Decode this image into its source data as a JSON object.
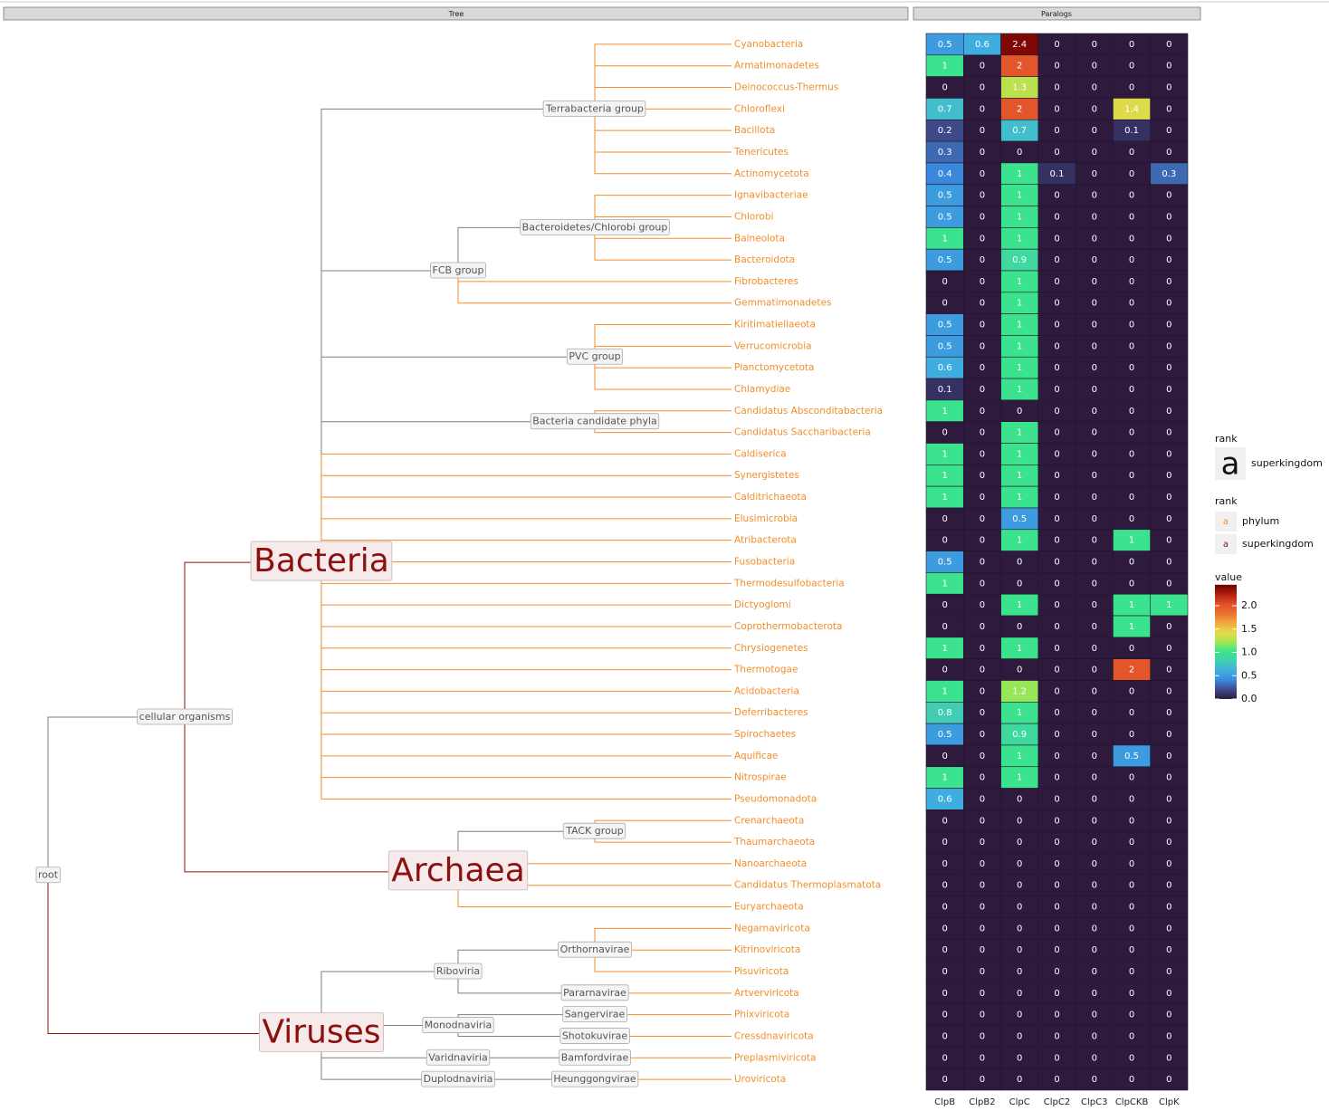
{
  "panels": {
    "tree": "Tree",
    "paralogs": "Paralogs"
  },
  "tree": {
    "edge_color": "#7f7f7f",
    "row_rank": "phylum",
    "nodes": [
      {
        "label": "root",
        "parent": null
      },
      {
        "label": "cellular organisms",
        "parent": 0
      },
      {
        "label": "Bacteria",
        "parent": 1,
        "rank": "superkingdom"
      },
      {
        "label": "Archaea",
        "parent": 1,
        "rank": "superkingdom"
      },
      {
        "label": "Viruses",
        "parent": 0,
        "rank": "superkingdom"
      },
      {
        "label": "Terrabacteria group",
        "parent": 2
      },
      {
        "label": "FCB group",
        "parent": 2
      },
      {
        "label": "Bacteroidetes/Chlorobi group",
        "parent": 6
      },
      {
        "label": "PVC group",
        "parent": 2
      },
      {
        "label": "Bacteria candidate phyla",
        "parent": 2
      },
      {
        "label": "TACK group",
        "parent": 3
      },
      {
        "label": "Riboviria",
        "parent": 4
      },
      {
        "label": "Orthornavirae",
        "parent": 11
      },
      {
        "label": "Pararnavirae",
        "parent": 11
      },
      {
        "label": "Monodnaviria",
        "parent": 4
      },
      {
        "label": "Sangervirae",
        "parent": 14
      },
      {
        "label": "Shotokuvirae",
        "parent": 14
      },
      {
        "label": "Varidnaviria",
        "parent": 4
      },
      {
        "label": "Bamfordvirae",
        "parent": 17
      },
      {
        "label": "Duplodnaviria",
        "parent": 4
      },
      {
        "label": "Heunggongvirae",
        "parent": 19
      }
    ],
    "row_parents": [
      5,
      5,
      5,
      5,
      5,
      5,
      5,
      7,
      7,
      7,
      7,
      6,
      6,
      8,
      8,
      8,
      8,
      9,
      9,
      2,
      2,
      2,
      2,
      2,
      2,
      2,
      2,
      2,
      2,
      2,
      2,
      2,
      2,
      2,
      2,
      2,
      10,
      10,
      3,
      3,
      3,
      12,
      12,
      12,
      13,
      15,
      16,
      18,
      20
    ]
  },
  "chart_data": {
    "type": "heatmap",
    "rows": [
      "Cyanobacteria",
      "Armatimonadetes",
      "Deinococcus-Thermus",
      "Chloroflexi",
      "Bacillota",
      "Tenericutes",
      "Actinomycetota",
      "Ignavibacteriae",
      "Chlorobi",
      "Balneolota",
      "Bacteroidota",
      "Fibrobacteres",
      "Gemmatimonadetes",
      "Kiritimatiellaeota",
      "Verrucomicrobia",
      "Planctomycetota",
      "Chlamydiae",
      "Candidatus Absconditabacteria",
      "Candidatus Saccharibacteria",
      "Caldiserica",
      "Synergistetes",
      "Calditrichaeota",
      "Elusimicrobia",
      "Atribacterota",
      "Fusobacteria",
      "Thermodesulfobacteria",
      "Dictyoglomi",
      "Coprothermobacterota",
      "Chrysiogenetes",
      "Thermotogae",
      "Acidobacteria",
      "Deferribacteres",
      "Spirochaetes",
      "Aquificae",
      "Nitrospirae",
      "Pseudomonadota",
      "Crenarchaeota",
      "Thaumarchaeota",
      "Nanoarchaeota",
      "Candidatus Thermoplasmatota",
      "Euryarchaeota",
      "Negarnaviricota",
      "Kitrinoviricota",
      "Pisuviricota",
      "Artverviricota",
      "Phixviricota",
      "Cressdnaviricota",
      "Preplasmiviricota",
      "Uroviricota"
    ],
    "categories": [
      "ClpB",
      "ClpB2",
      "ClpC",
      "ClpC2",
      "ClpC3",
      "ClpCKB",
      "ClpK"
    ],
    "values": [
      [
        0.5,
        0.6,
        2.4,
        0,
        0,
        0,
        0
      ],
      [
        1,
        0,
        2,
        0,
        0,
        0,
        0
      ],
      [
        0,
        0,
        1.3,
        0,
        0,
        0,
        0
      ],
      [
        0.7,
        0,
        2,
        0,
        0,
        1.4,
        0
      ],
      [
        0.2,
        0,
        0.7,
        0,
        0,
        0.1,
        0
      ],
      [
        0.3,
        0,
        0,
        0,
        0,
        0,
        0
      ],
      [
        0.4,
        0,
        1,
        0.1,
        0,
        0,
        0.3
      ],
      [
        0.5,
        0,
        1,
        0,
        0,
        0,
        0
      ],
      [
        0.5,
        0,
        1,
        0,
        0,
        0,
        0
      ],
      [
        1,
        0,
        1,
        0,
        0,
        0,
        0
      ],
      [
        0.5,
        0,
        0.9,
        0,
        0,
        0,
        0
      ],
      [
        0,
        0,
        1,
        0,
        0,
        0,
        0
      ],
      [
        0,
        0,
        1,
        0,
        0,
        0,
        0
      ],
      [
        0.5,
        0,
        1,
        0,
        0,
        0,
        0
      ],
      [
        0.5,
        0,
        1,
        0,
        0,
        0,
        0
      ],
      [
        0.6,
        0,
        1,
        0,
        0,
        0,
        0
      ],
      [
        0.1,
        0,
        1,
        0,
        0,
        0,
        0
      ],
      [
        1,
        0,
        0,
        0,
        0,
        0,
        0
      ],
      [
        0,
        0,
        1,
        0,
        0,
        0,
        0
      ],
      [
        1,
        0,
        1,
        0,
        0,
        0,
        0
      ],
      [
        1,
        0,
        1,
        0,
        0,
        0,
        0
      ],
      [
        1,
        0,
        1,
        0,
        0,
        0,
        0
      ],
      [
        0,
        0,
        0.5,
        0,
        0,
        0,
        0
      ],
      [
        0,
        0,
        1,
        0,
        0,
        1,
        0
      ],
      [
        0.5,
        0,
        0,
        0,
        0,
        0,
        0
      ],
      [
        1,
        0,
        0,
        0,
        0,
        0,
        0
      ],
      [
        0,
        0,
        1,
        0,
        0,
        1,
        1
      ],
      [
        0,
        0,
        0,
        0,
        0,
        1,
        0
      ],
      [
        1,
        0,
        1,
        0,
        0,
        0,
        0
      ],
      [
        0,
        0,
        0,
        0,
        0,
        2,
        0
      ],
      [
        1,
        0,
        1.2,
        0,
        0,
        0,
        0
      ],
      [
        0.8,
        0,
        1,
        0,
        0,
        0,
        0
      ],
      [
        0.5,
        0,
        0.9,
        0,
        0,
        0,
        0
      ],
      [
        0,
        0,
        1,
        0,
        0,
        0.5,
        0
      ],
      [
        1,
        0,
        1,
        0,
        0,
        0,
        0
      ],
      [
        0.6,
        0,
        0,
        0,
        0,
        0,
        0
      ],
      [
        0,
        0,
        0,
        0,
        0,
        0,
        0
      ],
      [
        0,
        0,
        0,
        0,
        0,
        0,
        0
      ],
      [
        0,
        0,
        0,
        0,
        0,
        0,
        0
      ],
      [
        0,
        0,
        0,
        0,
        0,
        0,
        0
      ],
      [
        0,
        0,
        0,
        0,
        0,
        0,
        0
      ],
      [
        0,
        0,
        0,
        0,
        0,
        0,
        0
      ],
      [
        0,
        0,
        0,
        0,
        0,
        0,
        0
      ],
      [
        0,
        0,
        0,
        0,
        0,
        0,
        0
      ],
      [
        0,
        0,
        0,
        0,
        0,
        0,
        0
      ],
      [
        0,
        0,
        0,
        0,
        0,
        0,
        0
      ],
      [
        0,
        0,
        0,
        0,
        0,
        0,
        0
      ],
      [
        0,
        0,
        0,
        0,
        0,
        0,
        0
      ],
      [
        0,
        0,
        0,
        0,
        0,
        0,
        0
      ]
    ],
    "zlim": [
      0,
      2.45
    ],
    "palette": [
      "#2e1a3d",
      "#3d4a8a",
      "#3a8be0",
      "#40afe0",
      "#42cfae",
      "#3ae58a",
      "#a4e650",
      "#e6d94a",
      "#f0a83c",
      "#ec7030",
      "#e04f28",
      "#b02010",
      "#6e0000"
    ],
    "colorbar": {
      "title": "value",
      "ticks": [
        {
          "value": 0,
          "label": "0.0"
        },
        0.5,
        {
          "value": 1,
          "label": "1.0"
        },
        1.5,
        {
          "value": 2,
          "label": "2.0"
        }
      ]
    }
  },
  "legend": {
    "size": {
      "title": "rank",
      "key": "a",
      "label": "superkingdom"
    },
    "color": {
      "title": "rank",
      "items": [
        {
          "key": "a",
          "label": "phylum",
          "color": "#f28e2b"
        },
        {
          "key": "a",
          "label": "superkingdom",
          "color": "#8b1010"
        }
      ]
    }
  }
}
